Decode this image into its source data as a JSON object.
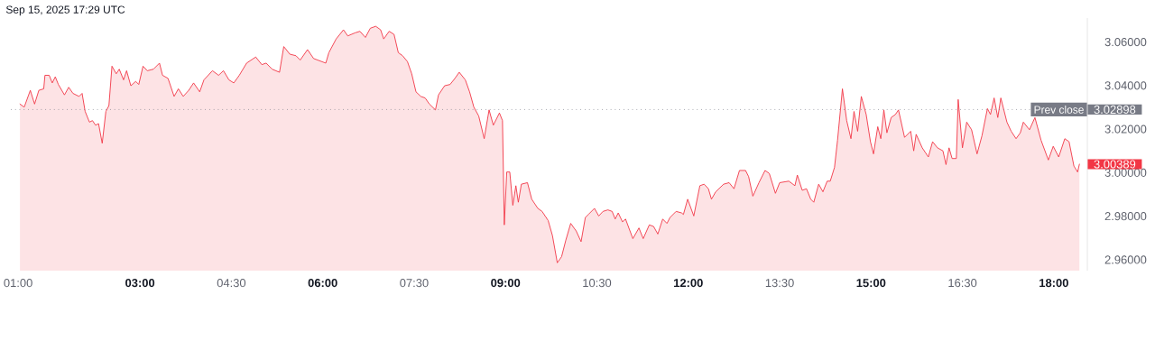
{
  "chart_data": {
    "type": "area",
    "title": "Sep 15, 2025 17:29 UTC",
    "color": "#f23645",
    "x": [
      1.03,
      1.1,
      1.2,
      1.27,
      1.34,
      1.42,
      1.44,
      1.51,
      1.56,
      1.61,
      1.66,
      1.76,
      1.83,
      1.9,
      2.0,
      2.05,
      2.1,
      2.17,
      2.22,
      2.27,
      2.32,
      2.38,
      2.44,
      2.49,
      2.54,
      2.61,
      2.66,
      2.73,
      2.78,
      2.85,
      2.93,
      2.98,
      3.05,
      3.12,
      3.22,
      3.32,
      3.37,
      3.46,
      3.56,
      3.63,
      3.71,
      3.8,
      3.88,
      3.98,
      4.05,
      4.19,
      4.29,
      4.37,
      4.46,
      4.54,
      4.63,
      4.75,
      4.9,
      5.0,
      5.07,
      5.17,
      5.29,
      5.36,
      5.46,
      5.56,
      5.63,
      5.75,
      5.85,
      6.05,
      6.1,
      6.22,
      6.34,
      6.41,
      6.53,
      6.61,
      6.7,
      6.78,
      6.87,
      6.95,
      7.0,
      7.09,
      7.17,
      7.24,
      7.31,
      7.39,
      7.46,
      7.53,
      7.61,
      7.68,
      7.75,
      7.85,
      7.9,
      8.0,
      8.09,
      8.17,
      8.24,
      8.34,
      8.41,
      8.48,
      8.56,
      8.65,
      8.73,
      8.8,
      8.9,
      8.95,
      8.98,
      9.02,
      9.07,
      9.12,
      9.17,
      9.21,
      9.26,
      9.36,
      9.43,
      9.53,
      9.6,
      9.7,
      9.77,
      9.85,
      9.92,
      9.99,
      10.07,
      10.16,
      10.24,
      10.31,
      10.36,
      10.46,
      10.53,
      10.6,
      10.68,
      10.75,
      10.8,
      10.85,
      10.92,
      10.97,
      11.09,
      11.19,
      11.26,
      11.36,
      11.43,
      11.5,
      11.58,
      11.65,
      11.7,
      11.8,
      11.89,
      11.92,
      11.99,
      12.09,
      12.19,
      12.26,
      12.33,
      12.38,
      12.45,
      12.58,
      12.67,
      12.75,
      12.84,
      12.94,
      12.99,
      13.06,
      13.16,
      13.26,
      13.33,
      13.43,
      13.5,
      13.65,
      13.75,
      13.79,
      13.87,
      13.94,
      14.01,
      14.06,
      14.14,
      14.21,
      14.28,
      14.33,
      14.4,
      14.45,
      14.53,
      14.6,
      14.67,
      14.72,
      14.78,
      14.84,
      14.92,
      14.99,
      15.04,
      15.11,
      15.16,
      15.21,
      15.26,
      15.33,
      15.4,
      15.45,
      15.5,
      15.55,
      15.65,
      15.7,
      15.74,
      15.84,
      15.94,
      16.01,
      16.09,
      16.18,
      16.23,
      16.28,
      16.33,
      16.4,
      16.43,
      16.5,
      16.57,
      16.65,
      16.74,
      16.82,
      16.91,
      16.96,
      17.02,
      17.08,
      17.13,
      17.23,
      17.3,
      17.38,
      17.45,
      17.5,
      17.6,
      17.69,
      17.79,
      17.91,
      17.99,
      18.08,
      18.18,
      18.25,
      18.33,
      18.39,
      18.42
    ],
    "values": [
      3.0315,
      3.0301,
      3.0378,
      3.0315,
      3.0378,
      3.0385,
      3.0447,
      3.0447,
      3.0412,
      3.044,
      3.0405,
      3.0357,
      3.0392,
      3.0364,
      3.035,
      3.0364,
      3.0281,
      3.0232,
      3.0239,
      3.0218,
      3.0225,
      3.0135,
      3.0281,
      3.0308,
      3.0489,
      3.0454,
      3.0475,
      3.0426,
      3.0468,
      3.0399,
      3.0419,
      3.0405,
      3.0489,
      3.0468,
      3.0475,
      3.0503,
      3.0447,
      3.0433,
      3.035,
      3.0385,
      3.035,
      3.0378,
      3.0412,
      3.0371,
      3.0426,
      3.0468,
      3.0447,
      3.0468,
      3.0426,
      3.0412,
      3.0447,
      3.0503,
      3.0531,
      3.0496,
      3.0503,
      3.0475,
      3.0461,
      3.0579,
      3.0544,
      3.0537,
      3.0517,
      3.0565,
      3.0524,
      3.0503,
      3.0551,
      3.0614,
      3.0656,
      3.0628,
      3.0642,
      3.0649,
      3.0621,
      3.0663,
      3.0672,
      3.0656,
      3.0614,
      3.0649,
      3.0635,
      3.0551,
      3.0537,
      3.051,
      3.0454,
      3.0371,
      3.035,
      3.0343,
      3.0315,
      3.0288,
      3.0357,
      3.0399,
      3.0405,
      3.0433,
      3.0461,
      3.0426,
      3.0371,
      3.0301,
      3.026,
      3.0156,
      3.0288,
      3.0218,
      3.0274,
      3.0239,
      2.976,
      3.0003,
      3.0003,
      2.985,
      2.994,
      2.9864,
      2.9947,
      2.9954,
      2.9878,
      2.9836,
      2.9822,
      2.978,
      2.9711,
      2.9586,
      2.9614,
      2.969,
      2.9767,
      2.9732,
      2.9683,
      2.9794,
      2.9808,
      2.9836,
      2.9801,
      2.9822,
      2.9829,
      2.9822,
      2.9787,
      2.9815,
      2.9774,
      2.9787,
      2.9697,
      2.9746,
      2.9697,
      2.976,
      2.9753,
      2.9718,
      2.9787,
      2.9767,
      2.9794,
      2.9822,
      2.9815,
      2.9808,
      2.9878,
      2.9801,
      2.994,
      2.9947,
      2.9926,
      2.9878,
      2.9912,
      2.9947,
      2.9954,
      2.9926,
      3.001,
      3.001,
      2.9982,
      2.9892,
      2.9954,
      3.001,
      2.9996,
      2.9905,
      2.9954,
      2.9961,
      2.994,
      2.9989,
      2.9919,
      2.9926,
      2.9878,
      2.9864,
      2.9947,
      2.9912,
      2.9961,
      2.9961,
      3.0024,
      3.0149,
      3.0385,
      3.0239,
      3.0156,
      3.0281,
      3.019,
      3.035,
      3.0267,
      3.0142,
      3.0086,
      3.0211,
      3.0156,
      3.0288,
      3.0183,
      3.0253,
      3.0267,
      3.0288,
      3.0225,
      3.0162,
      3.019,
      3.01,
      3.0176,
      3.0114,
      3.0072,
      3.0142,
      3.0114,
      3.01,
      3.0037,
      3.0114,
      3.0065,
      3.0065,
      3.0336,
      3.0114,
      3.0232,
      3.0197,
      3.0086,
      3.0169,
      3.0294,
      3.0267,
      3.0343,
      3.0253,
      3.0343,
      3.0232,
      3.019,
      3.0156,
      3.0183,
      3.0232,
      3.0197,
      3.0253,
      3.0149,
      3.0058,
      3.0121,
      3.0072,
      3.0156,
      3.0142,
      3.003,
      3.0003,
      3.0039
    ],
    "xlim": [
      0.88,
      18.55
    ],
    "ylim": [
      2.955,
      3.071
    ],
    "xticks": [
      {
        "value": 1,
        "label": "01:00"
      },
      {
        "value": 3,
        "label": "03:00"
      },
      {
        "value": 4.5,
        "label": "04:30"
      },
      {
        "value": 6,
        "label": "06:00"
      },
      {
        "value": 7.5,
        "label": "07:30"
      },
      {
        "value": 9,
        "label": "09:00"
      },
      {
        "value": 10.5,
        "label": "10:30"
      },
      {
        "value": 12,
        "label": "12:00"
      },
      {
        "value": 13.5,
        "label": "13:30"
      },
      {
        "value": 15,
        "label": "15:00"
      },
      {
        "value": 16.5,
        "label": "16:30"
      },
      {
        "value": 18,
        "label": "18:00"
      }
    ],
    "yticks": [
      {
        "value": 2.96,
        "label": "2.96000"
      },
      {
        "value": 2.98,
        "label": "2.98000"
      },
      {
        "value": 3.0,
        "label": "3.00000"
      },
      {
        "value": 3.02,
        "label": "3.02000"
      },
      {
        "value": 3.04,
        "label": "3.04000"
      },
      {
        "value": 3.06,
        "label": "3.06000"
      }
    ],
    "ref_lines": [
      {
        "axis": "y",
        "value": 3.02898,
        "label": "Prev close",
        "color": "#787b86",
        "line_style": "dotted"
      }
    ],
    "annotations": [
      "3.02898",
      "3.00389"
    ]
  }
}
